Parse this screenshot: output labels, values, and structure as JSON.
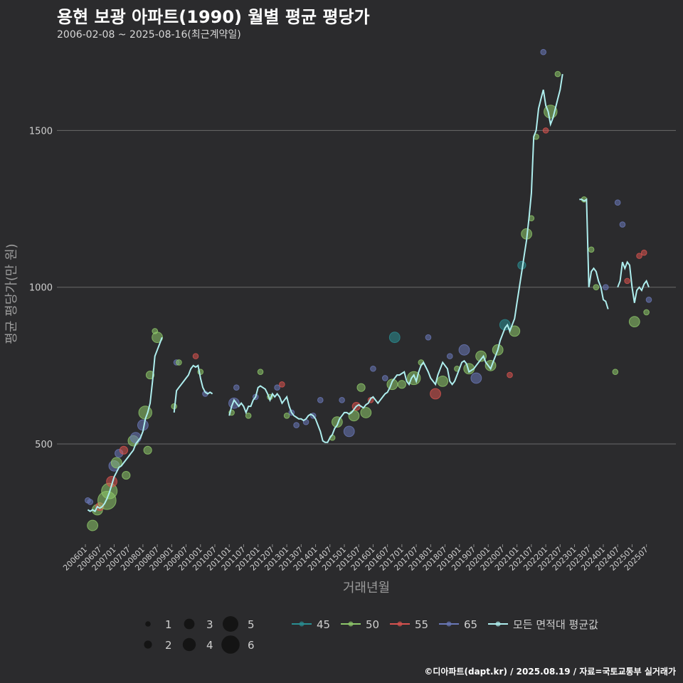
{
  "title": "용현 보광 아파트(1990) 월별 평균 평당가",
  "subtitle": "2006-02-08 ~ 2025-08-16(최근계약일)",
  "caption": "©디아파트(dapt.kr) / 2025.08.19 / 자료=국토교통부 실거래가",
  "colors": {
    "background": "#2b2b2d",
    "grid": "#6a6a6a",
    "avg_line": "#aeeeee",
    "series": {
      "45": "#2a8f93",
      "50": "#8ec86a",
      "55": "#d9534f",
      "65": "#6a78b8"
    }
  },
  "chart_data": {
    "type": "scatter",
    "xlabel": "거래년월",
    "ylabel": "평균 평당가(만 원)",
    "x_range": [
      "2006-01",
      "2025-08"
    ],
    "ylim": [
      180,
      1780
    ],
    "y_ticks": [
      500,
      1000,
      1500
    ],
    "x_tick_labels": [
      "200601",
      "200607",
      "200701",
      "200707",
      "200801",
      "200807",
      "200901",
      "200907",
      "201001",
      "201007",
      "201101",
      "201107",
      "201201",
      "201207",
      "201301",
      "201307",
      "201401",
      "201407",
      "201501",
      "201507",
      "201601",
      "201607",
      "201701",
      "201707",
      "201801",
      "201807",
      "201901",
      "201907",
      "202001",
      "202007",
      "202101",
      "202107",
      "202201",
      "202207",
      "202301",
      "202307",
      "202401",
      "202407",
      "202501",
      "202507"
    ],
    "grid": true,
    "legend_position": "bottom",
    "size_legend": {
      "values": [
        1,
        2,
        3,
        4,
        5,
        6
      ]
    },
    "color_legend": [
      "45",
      "50",
      "55",
      "65",
      "모든 면적대 평균값"
    ],
    "average_line": [
      [
        "2006-02",
        290
      ],
      [
        "2006-03",
        285
      ],
      [
        "2006-04",
        290
      ],
      [
        "2006-05",
        285
      ],
      [
        "2006-06",
        300
      ],
      [
        "2006-07",
        295
      ],
      [
        "2006-08",
        300
      ],
      [
        "2006-09",
        310
      ],
      [
        "2006-10",
        325
      ],
      [
        "2006-11",
        345
      ],
      [
        "2006-12",
        370
      ],
      [
        "2007-01",
        395
      ],
      [
        "2007-02",
        410
      ],
      [
        "2007-03",
        425
      ],
      [
        "2007-04",
        430
      ],
      [
        "2007-05",
        440
      ],
      [
        "2007-06",
        450
      ],
      [
        "2007-07",
        460
      ],
      [
        "2007-08",
        470
      ],
      [
        "2007-09",
        480
      ],
      [
        "2007-10",
        500
      ],
      [
        "2007-11",
        510
      ],
      [
        "2007-12",
        520
      ],
      [
        "2008-01",
        540
      ],
      [
        "2008-02",
        580
      ],
      [
        "2008-03",
        600
      ],
      [
        "2008-04",
        630
      ],
      [
        "2008-05",
        700
      ],
      [
        "2008-06",
        780
      ],
      [
        "2008-07",
        800
      ],
      [
        "2008-08",
        820
      ],
      [
        "2008-09",
        840
      ],
      [
        "2009-02",
        600
      ],
      [
        "2009-03",
        670
      ],
      [
        "2009-04",
        680
      ],
      [
        "2009-05",
        690
      ],
      [
        "2009-06",
        700
      ],
      [
        "2009-07",
        710
      ],
      [
        "2009-08",
        720
      ],
      [
        "2009-09",
        740
      ],
      [
        "2009-10",
        750
      ],
      [
        "2009-11",
        745
      ],
      [
        "2009-12",
        750
      ],
      [
        "2010-01",
        710
      ],
      [
        "2010-02",
        680
      ],
      [
        "2010-03",
        665
      ],
      [
        "2010-04",
        660
      ],
      [
        "2010-05",
        665
      ],
      [
        "2010-06",
        660
      ],
      [
        "2011-01",
        590
      ],
      [
        "2011-02",
        620
      ],
      [
        "2011-03",
        640
      ],
      [
        "2011-04",
        630
      ],
      [
        "2011-05",
        620
      ],
      [
        "2011-06",
        630
      ],
      [
        "2011-07",
        620
      ],
      [
        "2011-08",
        600
      ],
      [
        "2011-09",
        620
      ],
      [
        "2011-10",
        620
      ],
      [
        "2011-11",
        640
      ],
      [
        "2011-12",
        650
      ],
      [
        "2012-01",
        680
      ],
      [
        "2012-02",
        685
      ],
      [
        "2012-03",
        680
      ],
      [
        "2012-04",
        675
      ],
      [
        "2012-05",
        660
      ],
      [
        "2012-06",
        640
      ],
      [
        "2012-07",
        660
      ],
      [
        "2012-08",
        650
      ],
      [
        "2012-09",
        660
      ],
      [
        "2012-10",
        650
      ],
      [
        "2012-11",
        630
      ],
      [
        "2012-12",
        640
      ],
      [
        "2013-01",
        650
      ],
      [
        "2013-02",
        620
      ],
      [
        "2013-03",
        600
      ],
      [
        "2013-04",
        590
      ],
      [
        "2013-05",
        585
      ],
      [
        "2013-06",
        580
      ],
      [
        "2013-07",
        580
      ],
      [
        "2013-08",
        575
      ],
      [
        "2013-09",
        580
      ],
      [
        "2013-10",
        590
      ],
      [
        "2013-11",
        595
      ],
      [
        "2013-12",
        590
      ],
      [
        "2014-01",
        580
      ],
      [
        "2014-02",
        560
      ],
      [
        "2014-03",
        540
      ],
      [
        "2014-04",
        510
      ],
      [
        "2014-05",
        505
      ],
      [
        "2014-06",
        505
      ],
      [
        "2014-07",
        520
      ],
      [
        "2014-08",
        530
      ],
      [
        "2014-09",
        550
      ],
      [
        "2014-10",
        560
      ],
      [
        "2014-11",
        580
      ],
      [
        "2014-12",
        590
      ],
      [
        "2015-01",
        600
      ],
      [
        "2015-02",
        600
      ],
      [
        "2015-03",
        595
      ],
      [
        "2015-04",
        600
      ],
      [
        "2015-05",
        610
      ],
      [
        "2015-06",
        620
      ],
      [
        "2015-07",
        625
      ],
      [
        "2015-08",
        620
      ],
      [
        "2015-09",
        615
      ],
      [
        "2015-10",
        625
      ],
      [
        "2015-11",
        630
      ],
      [
        "2015-12",
        645
      ],
      [
        "2016-01",
        650
      ],
      [
        "2016-02",
        640
      ],
      [
        "2016-03",
        630
      ],
      [
        "2016-04",
        640
      ],
      [
        "2016-05",
        650
      ],
      [
        "2016-06",
        660
      ],
      [
        "2016-07",
        665
      ],
      [
        "2016-08",
        680
      ],
      [
        "2016-09",
        700
      ],
      [
        "2016-10",
        710
      ],
      [
        "2016-11",
        720
      ],
      [
        "2016-12",
        720
      ],
      [
        "2017-01",
        725
      ],
      [
        "2017-02",
        730
      ],
      [
        "2017-03",
        700
      ],
      [
        "2017-04",
        690
      ],
      [
        "2017-05",
        710
      ],
      [
        "2017-06",
        720
      ],
      [
        "2017-07",
        700
      ],
      [
        "2017-08",
        730
      ],
      [
        "2017-09",
        750
      ],
      [
        "2017-10",
        760
      ],
      [
        "2017-11",
        745
      ],
      [
        "2017-12",
        730
      ],
      [
        "2018-01",
        710
      ],
      [
        "2018-02",
        700
      ],
      [
        "2018-03",
        690
      ],
      [
        "2018-04",
        720
      ],
      [
        "2018-05",
        740
      ],
      [
        "2018-06",
        760
      ],
      [
        "2018-07",
        750
      ],
      [
        "2018-08",
        740
      ],
      [
        "2018-09",
        700
      ],
      [
        "2018-10",
        690
      ],
      [
        "2018-11",
        700
      ],
      [
        "2018-12",
        720
      ],
      [
        "2019-01",
        740
      ],
      [
        "2019-02",
        760
      ],
      [
        "2019-03",
        765
      ],
      [
        "2019-04",
        755
      ],
      [
        "2019-05",
        730
      ],
      [
        "2019-06",
        735
      ],
      [
        "2019-07",
        740
      ],
      [
        "2019-08",
        750
      ],
      [
        "2019-09",
        760
      ],
      [
        "2019-10",
        770
      ],
      [
        "2019-11",
        780
      ],
      [
        "2019-12",
        760
      ],
      [
        "2020-01",
        750
      ],
      [
        "2020-02",
        740
      ],
      [
        "2020-03",
        760
      ],
      [
        "2020-04",
        780
      ],
      [
        "2020-05",
        800
      ],
      [
        "2020-06",
        830
      ],
      [
        "2020-07",
        850
      ],
      [
        "2020-08",
        870
      ],
      [
        "2020-09",
        880
      ],
      [
        "2020-10",
        860
      ],
      [
        "2020-11",
        880
      ],
      [
        "2020-12",
        900
      ],
      [
        "2021-01",
        950
      ],
      [
        "2021-02",
        1000
      ],
      [
        "2021-03",
        1050
      ],
      [
        "2021-04",
        1100
      ],
      [
        "2021-05",
        1150
      ],
      [
        "2021-06",
        1220
      ],
      [
        "2021-07",
        1300
      ],
      [
        "2021-08",
        1480
      ],
      [
        "2021-09",
        1500
      ],
      [
        "2021-10",
        1570
      ],
      [
        "2021-11",
        1600
      ],
      [
        "2021-12",
        1630
      ],
      [
        "2022-01",
        1580
      ],
      [
        "2022-02",
        1560
      ],
      [
        "2022-03",
        1520
      ],
      [
        "2022-04",
        1540
      ],
      [
        "2022-05",
        1570
      ],
      [
        "2022-06",
        1600
      ],
      [
        "2022-07",
        1630
      ],
      [
        "2022-08",
        1680
      ],
      [
        "2023-03",
        1280
      ],
      [
        "2023-04",
        1280
      ],
      [
        "2023-05",
        1275
      ],
      [
        "2023-06",
        1280
      ],
      [
        "2023-07",
        1000
      ],
      [
        "2023-08",
        1050
      ],
      [
        "2023-09",
        1060
      ],
      [
        "2023-10",
        1050
      ],
      [
        "2023-11",
        1020
      ],
      [
        "2023-12",
        1000
      ],
      [
        "2024-01",
        960
      ],
      [
        "2024-02",
        955
      ],
      [
        "2024-03",
        930
      ],
      [
        "2024-07",
        1000
      ],
      [
        "2024-08",
        1020
      ],
      [
        "2024-09",
        1080
      ],
      [
        "2024-10",
        1060
      ],
      [
        "2024-11",
        1080
      ],
      [
        "2024-12",
        1070
      ],
      [
        "2025-01",
        1000
      ],
      [
        "2025-02",
        950
      ],
      [
        "2025-03",
        990
      ],
      [
        "2025-04",
        1000
      ],
      [
        "2025-05",
        990
      ],
      [
        "2025-06",
        1010
      ],
      [
        "2025-07",
        1020
      ],
      [
        "2025-08",
        1000
      ]
    ],
    "points": [
      [
        "2006-02",
        320,
        "65",
        1
      ],
      [
        "2006-03",
        315,
        "65",
        1
      ],
      [
        "2006-04",
        240,
        "50",
        3
      ],
      [
        "2006-06",
        290,
        "50",
        3
      ],
      [
        "2006-07",
        300,
        "55",
        2
      ],
      [
        "2006-10",
        320,
        "50",
        6
      ],
      [
        "2006-11",
        350,
        "50",
        5
      ],
      [
        "2006-12",
        380,
        "55",
        3
      ],
      [
        "2007-01",
        430,
        "65",
        3
      ],
      [
        "2007-02",
        440,
        "50",
        3
      ],
      [
        "2007-03",
        470,
        "65",
        2
      ],
      [
        "2007-05",
        480,
        "55",
        2
      ],
      [
        "2007-06",
        400,
        "50",
        2
      ],
      [
        "2007-09",
        510,
        "50",
        3
      ],
      [
        "2007-10",
        520,
        "65",
        3
      ],
      [
        "2008-01",
        560,
        "65",
        3
      ],
      [
        "2008-02",
        600,
        "50",
        4
      ],
      [
        "2008-03",
        480,
        "50",
        2
      ],
      [
        "2008-04",
        720,
        "50",
        2
      ],
      [
        "2008-06",
        860,
        "50",
        1
      ],
      [
        "2008-07",
        840,
        "50",
        3
      ],
      [
        "2009-02",
        620,
        "50",
        1
      ],
      [
        "2009-03",
        760,
        "65",
        1
      ],
      [
        "2009-04",
        760,
        "50",
        1
      ],
      [
        "2009-11",
        780,
        "55",
        1
      ],
      [
        "2010-01",
        730,
        "50",
        1
      ],
      [
        "2010-03",
        660,
        "65",
        1
      ],
      [
        "2011-02",
        600,
        "50",
        1
      ],
      [
        "2011-03",
        630,
        "65",
        3
      ],
      [
        "2011-04",
        680,
        "65",
        1
      ],
      [
        "2011-09",
        590,
        "50",
        1
      ],
      [
        "2011-12",
        650,
        "65",
        1
      ],
      [
        "2012-02",
        730,
        "50",
        1
      ],
      [
        "2012-06",
        650,
        "50",
        1
      ],
      [
        "2012-09",
        680,
        "65",
        1
      ],
      [
        "2012-11",
        690,
        "55",
        1
      ],
      [
        "2013-01",
        590,
        "50",
        1
      ],
      [
        "2013-03",
        600,
        "65",
        1
      ],
      [
        "2013-05",
        560,
        "65",
        1
      ],
      [
        "2013-09",
        570,
        "65",
        1
      ],
      [
        "2013-12",
        590,
        "65",
        1
      ],
      [
        "2014-03",
        640,
        "65",
        1
      ],
      [
        "2014-08",
        520,
        "50",
        1
      ],
      [
        "2014-10",
        570,
        "50",
        3
      ],
      [
        "2014-12",
        640,
        "65",
        1
      ],
      [
        "2015-03",
        540,
        "65",
        3
      ],
      [
        "2015-05",
        590,
        "50",
        3
      ],
      [
        "2015-06",
        620,
        "55",
        2
      ],
      [
        "2015-08",
        680,
        "50",
        2
      ],
      [
        "2015-10",
        600,
        "50",
        3
      ],
      [
        "2015-12",
        640,
        "55",
        1
      ],
      [
        "2016-01",
        740,
        "65",
        1
      ],
      [
        "2016-06",
        710,
        "65",
        1
      ],
      [
        "2016-09",
        690,
        "50",
        3
      ],
      [
        "2016-10",
        840,
        "45",
        3
      ],
      [
        "2017-01",
        690,
        "50",
        2
      ],
      [
        "2017-06",
        710,
        "50",
        4
      ],
      [
        "2017-09",
        760,
        "50",
        1
      ],
      [
        "2017-12",
        840,
        "65",
        1
      ],
      [
        "2018-03",
        660,
        "55",
        3
      ],
      [
        "2018-06",
        700,
        "50",
        3
      ],
      [
        "2018-09",
        780,
        "65",
        1
      ],
      [
        "2018-12",
        740,
        "50",
        1
      ],
      [
        "2019-03",
        800,
        "65",
        3
      ],
      [
        "2019-05",
        740,
        "50",
        3
      ],
      [
        "2019-08",
        710,
        "65",
        3
      ],
      [
        "2019-10",
        780,
        "50",
        3
      ],
      [
        "2020-02",
        750,
        "50",
        3
      ],
      [
        "2020-05",
        800,
        "50",
        3
      ],
      [
        "2020-08",
        880,
        "45",
        3
      ],
      [
        "2020-10",
        720,
        "55",
        1
      ],
      [
        "2020-12",
        860,
        "50",
        3
      ],
      [
        "2021-03",
        1070,
        "45",
        2
      ],
      [
        "2021-05",
        1170,
        "50",
        3
      ],
      [
        "2021-07",
        1220,
        "50",
        1
      ],
      [
        "2021-09",
        1480,
        "50",
        1
      ],
      [
        "2021-12",
        1750,
        "65",
        1
      ],
      [
        "2022-01",
        1500,
        "55",
        1
      ],
      [
        "2022-03",
        1560,
        "50",
        4
      ],
      [
        "2022-06",
        1680,
        "50",
        1
      ],
      [
        "2023-05",
        1280,
        "50",
        1
      ],
      [
        "2023-08",
        1120,
        "50",
        1
      ],
      [
        "2023-10",
        1000,
        "50",
        1
      ],
      [
        "2024-02",
        1000,
        "65",
        1
      ],
      [
        "2024-06",
        730,
        "50",
        1
      ],
      [
        "2024-07",
        1270,
        "65",
        1
      ],
      [
        "2024-09",
        1200,
        "65",
        1
      ],
      [
        "2024-11",
        1020,
        "55",
        1
      ],
      [
        "2025-02",
        890,
        "50",
        3
      ],
      [
        "2025-04",
        1100,
        "55",
        1
      ],
      [
        "2025-06",
        1110,
        "55",
        1
      ],
      [
        "2025-07",
        920,
        "50",
        1
      ],
      [
        "2025-08",
        960,
        "65",
        1
      ]
    ]
  }
}
